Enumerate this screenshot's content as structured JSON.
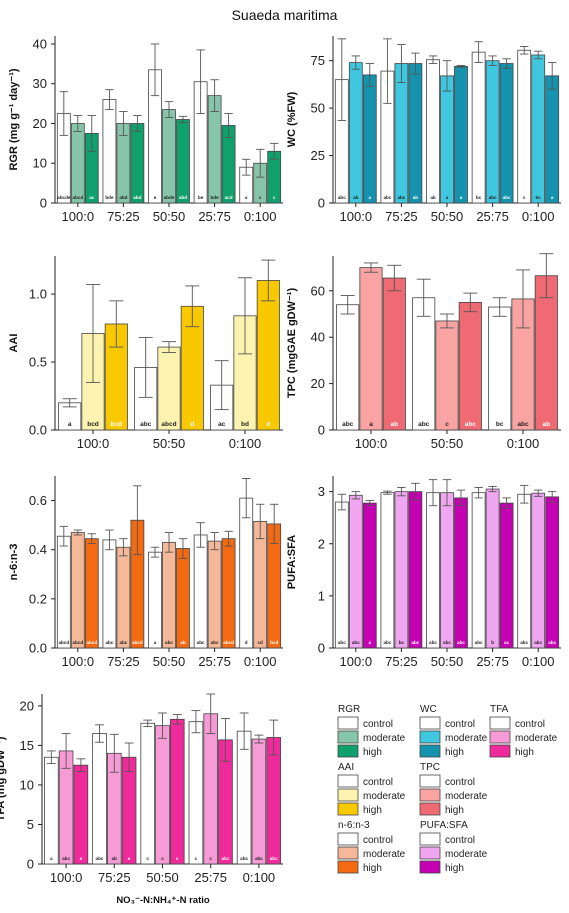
{
  "figure_title": "Suaeda maritima",
  "xlabel_main": "NO₃⁻-N:NH₄⁺-N ratio",
  "colors": {
    "RGR": [
      "#ffffff",
      "#86c5a9",
      "#0fa06e"
    ],
    "WC": [
      "#ffffff",
      "#3ec7de",
      "#1592ad"
    ],
    "AAI": [
      "#ffffff",
      "#fdf3b0",
      "#f8c800"
    ],
    "TPC": [
      "#ffffff",
      "#faa3a3",
      "#f06a74"
    ],
    "n6n3": [
      "#ffffff",
      "#f5b898",
      "#f46a12"
    ],
    "PUFA:SFA": [
      "#ffffff",
      "#f0a6f0",
      "#c400b2"
    ],
    "TFA": [
      "#ffffff",
      "#f79bd6",
      "#ef2a9a"
    ]
  },
  "legends": [
    {
      "title": "RGR",
      "key": "RGR",
      "labels": [
        "control",
        "moderate",
        "high"
      ]
    },
    {
      "title": "WC",
      "key": "WC",
      "labels": [
        "control",
        "moderate",
        "high"
      ]
    },
    {
      "title": "TFA",
      "key": "TFA",
      "labels": [
        "control",
        "moderate",
        "high"
      ]
    },
    {
      "title": "AAI",
      "key": "AAI",
      "labels": [
        "control",
        "moderate",
        "high"
      ]
    },
    {
      "title": "TPC",
      "key": "TPC",
      "labels": [
        "control",
        "moderate",
        "high"
      ]
    },
    {
      "title": "n-6:n-3",
      "key": "n6n3",
      "labels": [
        "control",
        "moderate",
        "high"
      ]
    },
    {
      "title": "PUFA:SFA",
      "key": "PUFA:SFA",
      "labels": [
        "control",
        "moderate",
        "high"
      ]
    }
  ],
  "chart_data": [
    {
      "type": "bar",
      "id": "rgr",
      "ylabel": "RGR (mg g⁻¹ day⁻¹)",
      "ylim": [
        0,
        42
      ],
      "yticks": [
        0,
        10,
        20,
        30,
        40
      ],
      "colorKey": "RGR",
      "categories": [
        "100:0",
        "75:25",
        "50:50",
        "25:75",
        "0:100"
      ],
      "series": [
        {
          "name": "control",
          "values": [
            22.5,
            26,
            33.5,
            30.5,
            9
          ],
          "err": [
            5.5,
            2.5,
            6.5,
            8,
            2
          ],
          "letters": [
            "abcde",
            "bde",
            "e",
            "be",
            "a"
          ]
        },
        {
          "name": "moderate",
          "values": [
            20,
            20,
            23.5,
            27,
            10
          ],
          "err": [
            2,
            3,
            2,
            4,
            3.5
          ],
          "letters": [
            "abcd",
            "abd",
            "abde",
            "bde",
            "c"
          ]
        },
        {
          "name": "high",
          "values": [
            17.5,
            20,
            21,
            19.5,
            13
          ],
          "err": [
            4.5,
            2,
            0.8,
            3,
            2
          ],
          "letters": [
            "ac",
            "abd",
            "abd",
            "acd",
            "c"
          ]
        }
      ]
    },
    {
      "type": "bar",
      "id": "wc",
      "ylabel": "WC (%FW)",
      "ylim": [
        0,
        88
      ],
      "yticks": [
        0,
        25,
        50,
        75
      ],
      "colorKey": "WC",
      "categories": [
        "100:0",
        "75:25",
        "50:50",
        "25:75",
        "0:100"
      ],
      "series": [
        {
          "name": "control",
          "values": [
            65,
            69.5,
            75.5,
            79.5,
            80.5
          ],
          "err": [
            21.5,
            17,
            2,
            5.5,
            2
          ],
          "letters": [
            "abc",
            "abc",
            "ab",
            "bc",
            "c"
          ]
        },
        {
          "name": "moderate",
          "values": [
            74,
            73.5,
            67,
            75,
            78
          ],
          "err": [
            3.5,
            10,
            8,
            2.5,
            2
          ],
          "letters": [
            "ab",
            "abc",
            "a",
            "abc",
            "bc"
          ]
        },
        {
          "name": "high",
          "values": [
            67.5,
            73.5,
            72,
            73.5,
            67
          ],
          "err": [
            6,
            5.5,
            0.5,
            2.5,
            7
          ],
          "letters": [
            "a",
            "ab",
            "a",
            "abc",
            "a"
          ]
        }
      ]
    },
    {
      "type": "bar",
      "id": "aai",
      "ylabel": "AAI",
      "ylim": [
        0,
        1.28
      ],
      "yticks": [
        0.0,
        0.5,
        1.0
      ],
      "colorKey": "AAI",
      "categories": [
        "100:0",
        "50:50",
        "0:100"
      ],
      "series": [
        {
          "name": "control",
          "values": [
            0.2,
            0.46,
            0.33
          ],
          "err": [
            0.03,
            0.22,
            0.18
          ],
          "letters": [
            "a",
            "abc",
            "ac"
          ]
        },
        {
          "name": "moderate",
          "values": [
            0.71,
            0.61,
            0.84
          ],
          "err": [
            0.36,
            0.04,
            0.28
          ],
          "letters": [
            "bcd",
            "abcd",
            "bd"
          ]
        },
        {
          "name": "high",
          "values": [
            0.78,
            0.91,
            1.1
          ],
          "err": [
            0.17,
            0.15,
            0.15
          ],
          "letters": [
            "bcd",
            "d",
            "d"
          ]
        }
      ]
    },
    {
      "type": "bar",
      "id": "tpc",
      "ylabel": "TPC (mgGAE gDW⁻¹)",
      "ylim": [
        0,
        75
      ],
      "yticks": [
        0,
        20,
        40,
        60
      ],
      "colorKey": "TPC",
      "categories": [
        "100:0",
        "50:50",
        "0:100"
      ],
      "series": [
        {
          "name": "control",
          "values": [
            54,
            57,
            53
          ],
          "err": [
            4,
            8,
            4
          ],
          "letters": [
            "abc",
            "abc",
            "bc"
          ]
        },
        {
          "name": "moderate",
          "values": [
            70,
            47,
            56.5
          ],
          "err": [
            2,
            3,
            12.5
          ],
          "letters": [
            "a",
            "c",
            "abc"
          ]
        },
        {
          "name": "high",
          "values": [
            65.5,
            55,
            66.5
          ],
          "err": [
            5.5,
            4,
            9.5
          ],
          "letters": [
            "ab",
            "abc",
            "ab"
          ]
        }
      ]
    },
    {
      "type": "bar",
      "id": "n6n3",
      "ylabel": "n-6:n-3",
      "ylim": [
        0,
        0.7
      ],
      "yticks": [
        0.0,
        0.2,
        0.4,
        0.6
      ],
      "colorKey": "n6n3",
      "categories": [
        "100:0",
        "75:25",
        "50:50",
        "25:75",
        "0:100"
      ],
      "series": [
        {
          "name": "control",
          "values": [
            0.455,
            0.44,
            0.39,
            0.46,
            0.61
          ],
          "err": [
            0.04,
            0.04,
            0.02,
            0.05,
            0.08
          ],
          "letters": [
            "abcd",
            "abc",
            "a",
            "abc",
            "d"
          ]
        },
        {
          "name": "moderate",
          "values": [
            0.47,
            0.41,
            0.43,
            0.435,
            0.515
          ],
          "err": [
            0.01,
            0.035,
            0.04,
            0.035,
            0.07
          ],
          "letters": [
            "abcd",
            "abc",
            "abc",
            "abc",
            "cd"
          ]
        },
        {
          "name": "high",
          "values": [
            0.445,
            0.52,
            0.405,
            0.445,
            0.505
          ],
          "err": [
            0.02,
            0.14,
            0.04,
            0.03,
            0.08
          ],
          "letters": [
            "abcd",
            "abcd",
            "ab",
            "abcd",
            "bcd"
          ]
        }
      ]
    },
    {
      "type": "bar",
      "id": "pufasfa",
      "ylabel": "PUFA:SFA",
      "ylim": [
        0,
        3.3
      ],
      "yticks": [
        0,
        1,
        2,
        3
      ],
      "colorKey": "PUFA:SFA",
      "categories": [
        "100:0",
        "75:25",
        "50:50",
        "25:75",
        "0:100"
      ],
      "series": [
        {
          "name": "control",
          "values": [
            2.8,
            2.98,
            2.98,
            2.98,
            2.95
          ],
          "err": [
            0.15,
            0.03,
            0.25,
            0.1,
            0.17
          ],
          "letters": [
            "abc",
            "abc",
            "abc",
            "abc",
            "abc"
          ]
        },
        {
          "name": "moderate",
          "values": [
            2.93,
            3.0,
            2.98,
            3.05,
            2.97
          ],
          "err": [
            0.07,
            0.08,
            0.25,
            0.05,
            0.06
          ],
          "letters": [
            "abc",
            "bc",
            "abc",
            "b",
            "abc"
          ]
        },
        {
          "name": "high",
          "values": [
            2.78,
            3.0,
            2.88,
            2.78,
            2.9
          ],
          "err": [
            0.05,
            0.16,
            0.15,
            0.1,
            0.1
          ],
          "letters": [
            "a",
            "abc",
            "abc",
            "ac",
            "abc"
          ]
        }
      ]
    },
    {
      "type": "bar",
      "id": "tfa",
      "ylabel": "TFA (mg gDW⁻¹)",
      "ylim": [
        0,
        21.5
      ],
      "yticks": [
        0,
        5,
        10,
        15,
        20
      ],
      "colorKey": "TFA",
      "categories": [
        "100:0",
        "75:25",
        "50:50",
        "25:75",
        "0:100"
      ],
      "series": [
        {
          "name": "control",
          "values": [
            13.5,
            16.5,
            17.8,
            18,
            16.8
          ],
          "err": [
            0.8,
            1.1,
            0.4,
            1.4,
            2.3
          ],
          "letters": [
            "a",
            "abc",
            "c",
            "c",
            "abc"
          ]
        },
        {
          "name": "moderate",
          "values": [
            14.3,
            14,
            17.5,
            19,
            15.8
          ],
          "err": [
            2.2,
            2.4,
            1.6,
            2.5,
            0.5
          ],
          "letters": [
            "abc",
            "ab",
            "c",
            "c",
            "abc"
          ]
        },
        {
          "name": "high",
          "values": [
            12.5,
            13.5,
            18.3,
            15.7,
            16
          ],
          "err": [
            0.8,
            1.8,
            0.6,
            2.7,
            2.2
          ],
          "letters": [
            "a",
            "a",
            "c",
            "abc",
            "abc"
          ]
        }
      ]
    }
  ]
}
